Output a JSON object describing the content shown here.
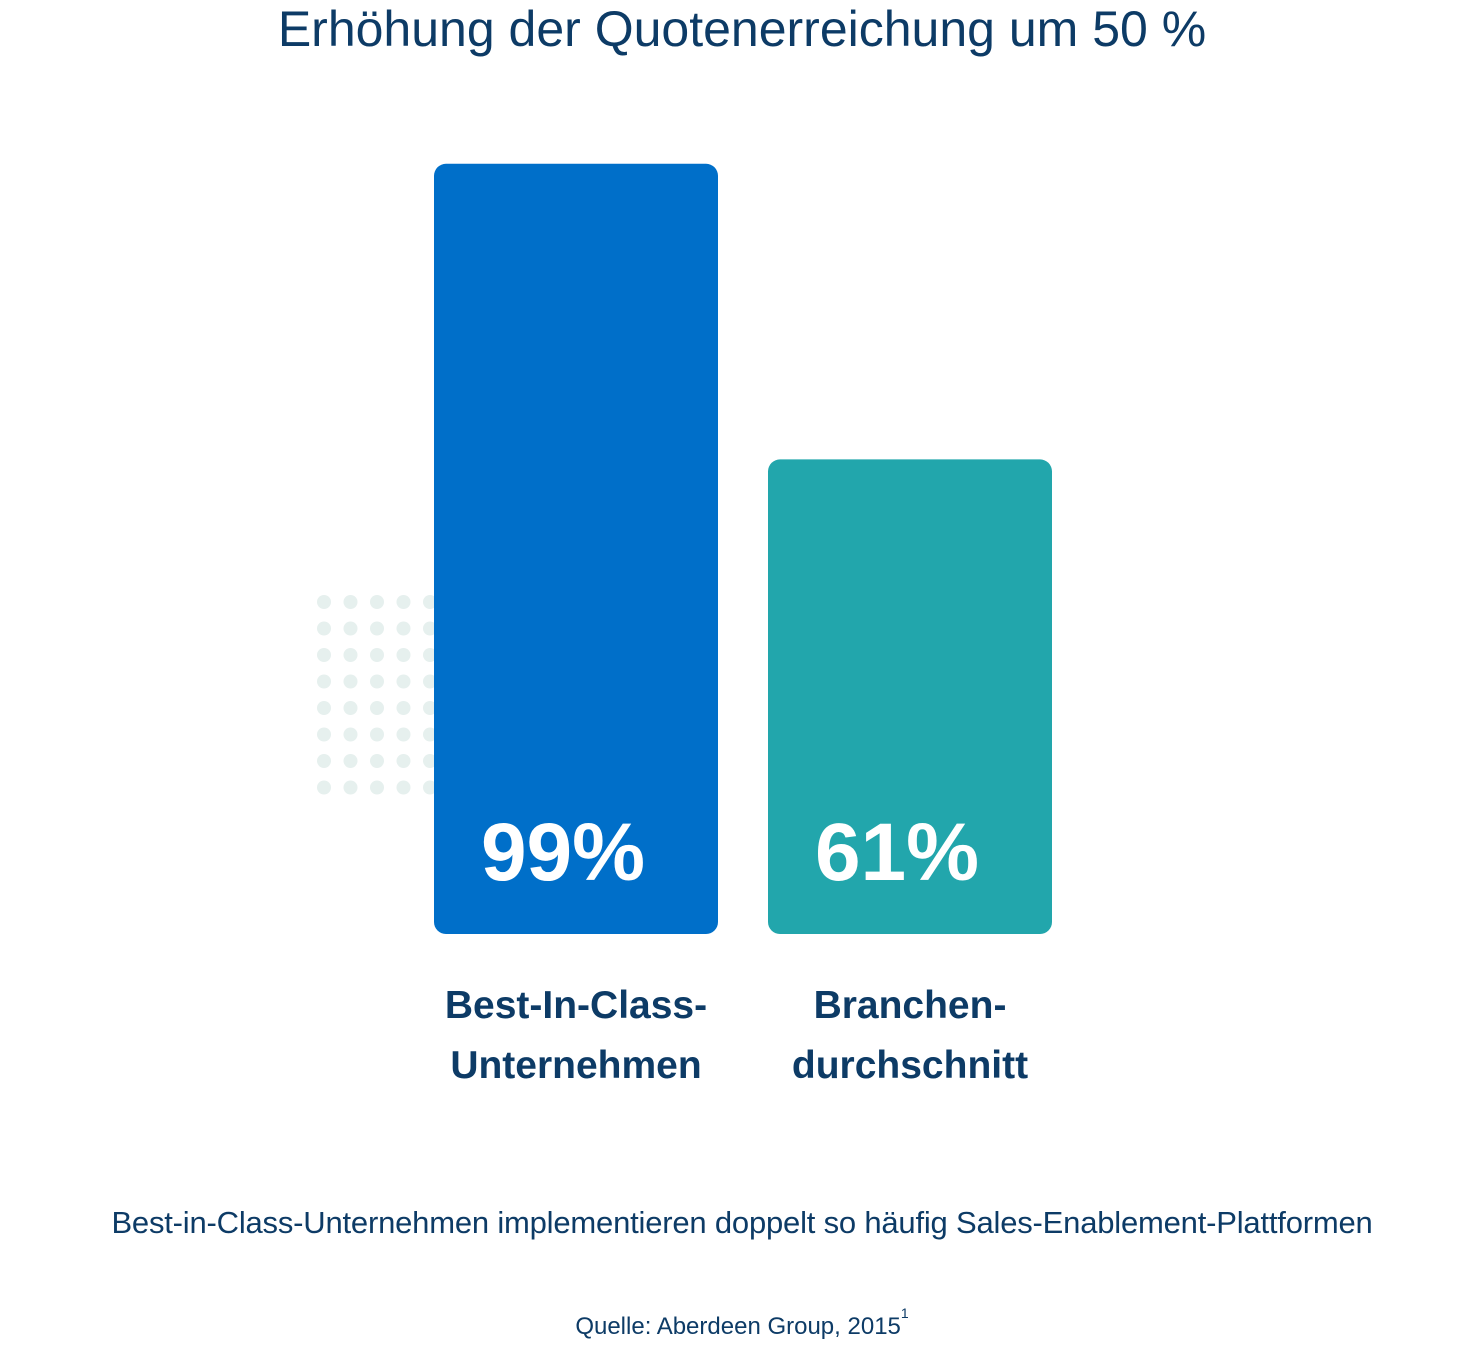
{
  "title": "Erhöhung der Quotenerreichung um 50 %",
  "subtitle": "Best-in-Class-Unternehmen implementieren doppelt so häufig Sales-Enablement-Plattformen",
  "source": {
    "text": "Quelle: Aberdeen Group, 2015",
    "footnote": "1"
  },
  "colors": {
    "text": "#0d3b66",
    "dots": "#e6f0ee"
  },
  "chart_data": {
    "type": "bar",
    "categories": [
      "Best-In-Class-Unternehmen",
      "Branchendurchschnitt"
    ],
    "category_lines": [
      [
        "Best-In-Class-",
        "Unternehmen"
      ],
      [
        "Branchen-",
        "durchschnitt"
      ]
    ],
    "values": [
      99,
      61
    ],
    "value_labels": [
      "99%",
      "61%"
    ],
    "colors": [
      "#006fc9",
      "#22a6ac"
    ],
    "unit": "%",
    "ylim": [
      0,
      100
    ],
    "grid": false,
    "legend": "none"
  }
}
